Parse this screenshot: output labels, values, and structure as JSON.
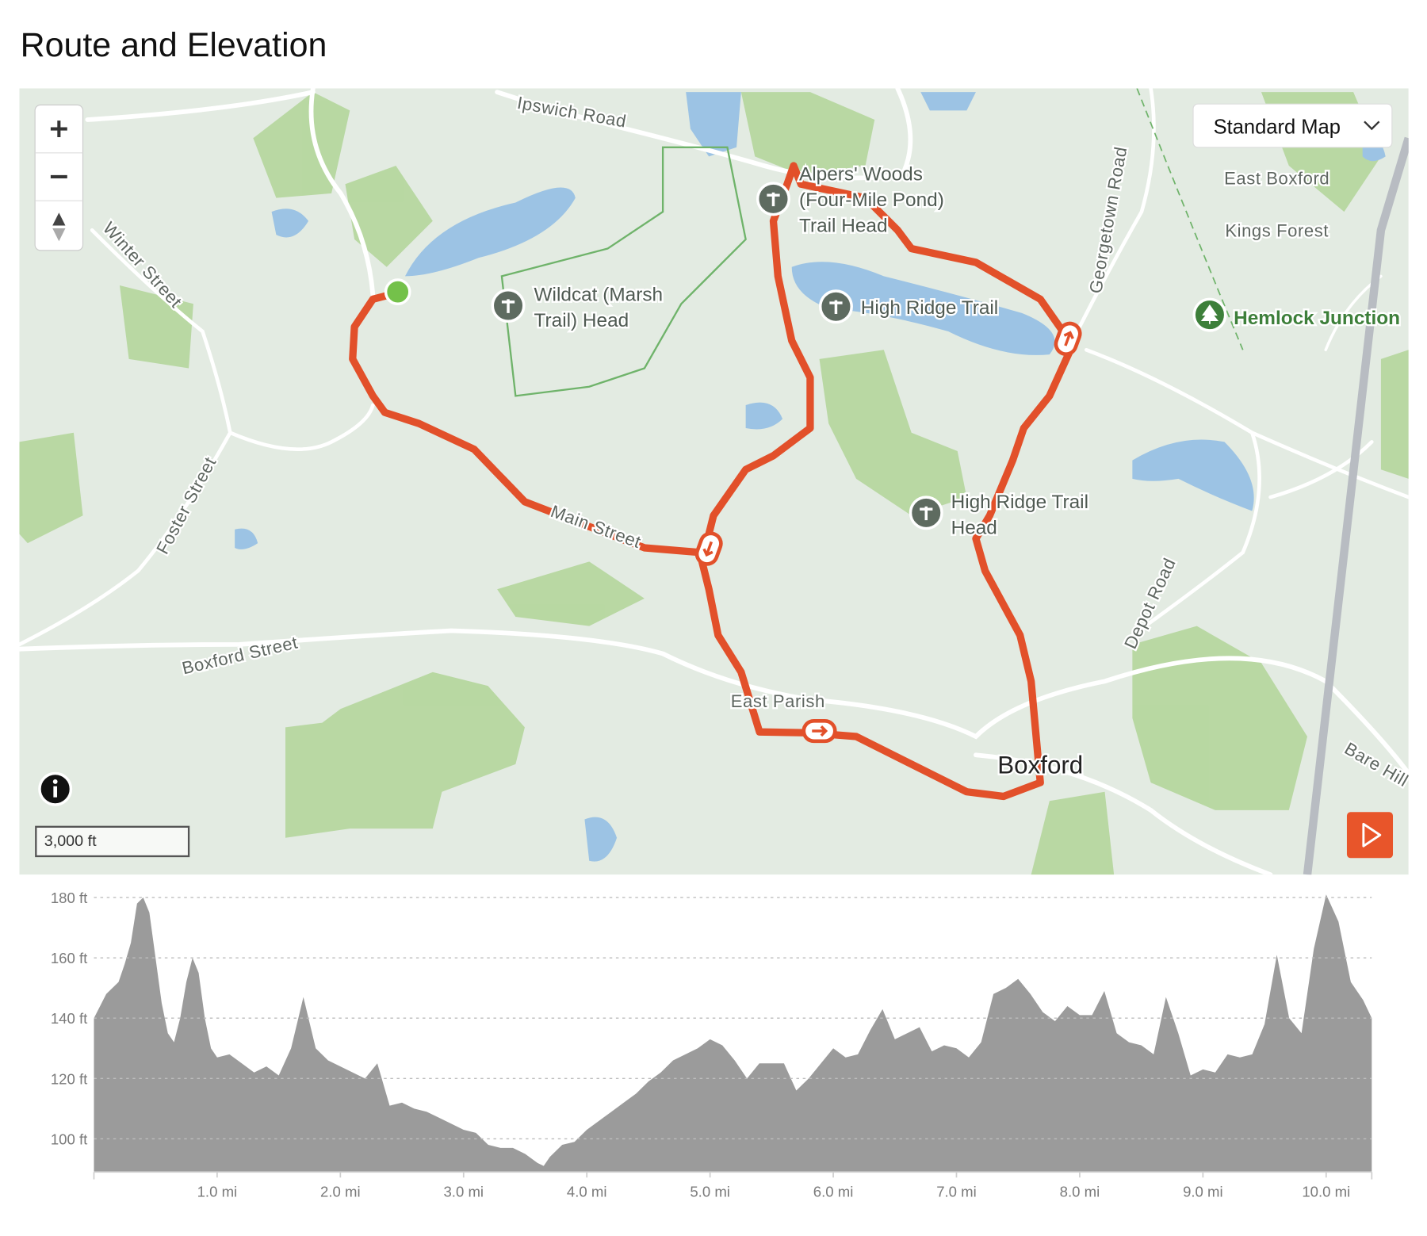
{
  "title": "Route and Elevation",
  "map": {
    "map_type": "Standard Map",
    "scale": "3,000 ft",
    "roads": [
      "Ipswich Road",
      "Winter Street",
      "Foster Street",
      "Boxford Street",
      "Main Street",
      "Georgetown Road",
      "Depot Road",
      "Bare Hill"
    ],
    "places": [
      "East Parish",
      "East Boxford",
      "Kings Forest",
      "Boxford"
    ],
    "pois": [
      {
        "lines": [
          "Alpers' Woods",
          "(Four-Mile Pond)",
          "Trail Head"
        ]
      },
      {
        "lines": [
          "Wildcat (Marsh",
          "Trail) Head"
        ]
      },
      {
        "lines": [
          "High Ridge Trail"
        ]
      },
      {
        "lines": [
          "High Ridge Trail",
          "Head"
        ]
      },
      {
        "lines": [
          "Hemlock Junction"
        ]
      }
    ]
  },
  "chart_data": {
    "type": "area",
    "color": "#9b9b9b",
    "grid": true,
    "x": [
      0,
      0.1,
      0.2,
      0.25,
      0.3,
      0.35,
      0.4,
      0.45,
      0.5,
      0.55,
      0.6,
      0.65,
      0.7,
      0.75,
      0.8,
      0.85,
      0.9,
      0.95,
      1.0,
      1.1,
      1.2,
      1.3,
      1.4,
      1.5,
      1.6,
      1.7,
      1.8,
      1.9,
      2.0,
      2.1,
      2.2,
      2.3,
      2.4,
      2.5,
      2.6,
      2.7,
      2.8,
      2.9,
      3.0,
      3.1,
      3.2,
      3.3,
      3.4,
      3.5,
      3.6,
      3.65,
      3.7,
      3.8,
      3.9,
      4.0,
      4.1,
      4.2,
      4.3,
      4.4,
      4.5,
      4.6,
      4.7,
      4.8,
      4.9,
      5.0,
      5.1,
      5.2,
      5.3,
      5.4,
      5.5,
      5.6,
      5.7,
      5.8,
      5.9,
      6.0,
      6.1,
      6.2,
      6.3,
      6.4,
      6.5,
      6.6,
      6.7,
      6.8,
      6.9,
      7.0,
      7.1,
      7.2,
      7.3,
      7.4,
      7.5,
      7.6,
      7.7,
      7.8,
      7.9,
      8.0,
      8.1,
      8.2,
      8.3,
      8.4,
      8.5,
      8.6,
      8.7,
      8.8,
      8.9,
      9.0,
      9.1,
      9.2,
      9.3,
      9.4,
      9.5,
      9.6,
      9.7,
      9.8,
      9.9,
      10.0,
      10.1,
      10.2,
      10.3,
      10.37
    ],
    "values": [
      140,
      148,
      152,
      158,
      165,
      178,
      180,
      175,
      160,
      145,
      135,
      132,
      140,
      152,
      160,
      155,
      140,
      130,
      127,
      128,
      125,
      122,
      124,
      121,
      130,
      147,
      130,
      126,
      124,
      122,
      120,
      125,
      111,
      112,
      110,
      109,
      107,
      105,
      103,
      102,
      98,
      97,
      97,
      95,
      92,
      91,
      94,
      98,
      99,
      103,
      106,
      109,
      112,
      115,
      119,
      122,
      126,
      128,
      130,
      133,
      131,
      126,
      120,
      125,
      125,
      125,
      116,
      120,
      125,
      130,
      127,
      128,
      136,
      143,
      133,
      135,
      137,
      129,
      131,
      130,
      127,
      132,
      148,
      150,
      153,
      148,
      142,
      139,
      144,
      141,
      141,
      149,
      135,
      132,
      131,
      128,
      147,
      135,
      121,
      123,
      122,
      128,
      127,
      128,
      138,
      161,
      140,
      135,
      163,
      181,
      172,
      152,
      146,
      140
    ],
    "xlim": [
      0,
      10.37
    ],
    "ylim": [
      89,
      183
    ],
    "xticks": [
      {
        "value": 1,
        "label": "1.0 mi"
      },
      {
        "value": 2,
        "label": "2.0 mi"
      },
      {
        "value": 3,
        "label": "3.0 mi"
      },
      {
        "value": 4,
        "label": "4.0 mi"
      },
      {
        "value": 5,
        "label": "5.0 mi"
      },
      {
        "value": 6,
        "label": "6.0 mi"
      },
      {
        "value": 7,
        "label": "7.0 mi"
      },
      {
        "value": 8,
        "label": "8.0 mi"
      },
      {
        "value": 9,
        "label": "9.0 mi"
      },
      {
        "value": 10,
        "label": "10.0 mi"
      }
    ],
    "yticks": [
      {
        "value": 100,
        "label": "100 ft"
      },
      {
        "value": 120,
        "label": "120 ft"
      },
      {
        "value": 140,
        "label": "140 ft"
      },
      {
        "value": 160,
        "label": "160 ft"
      },
      {
        "value": 180,
        "label": "180 ft"
      }
    ]
  }
}
